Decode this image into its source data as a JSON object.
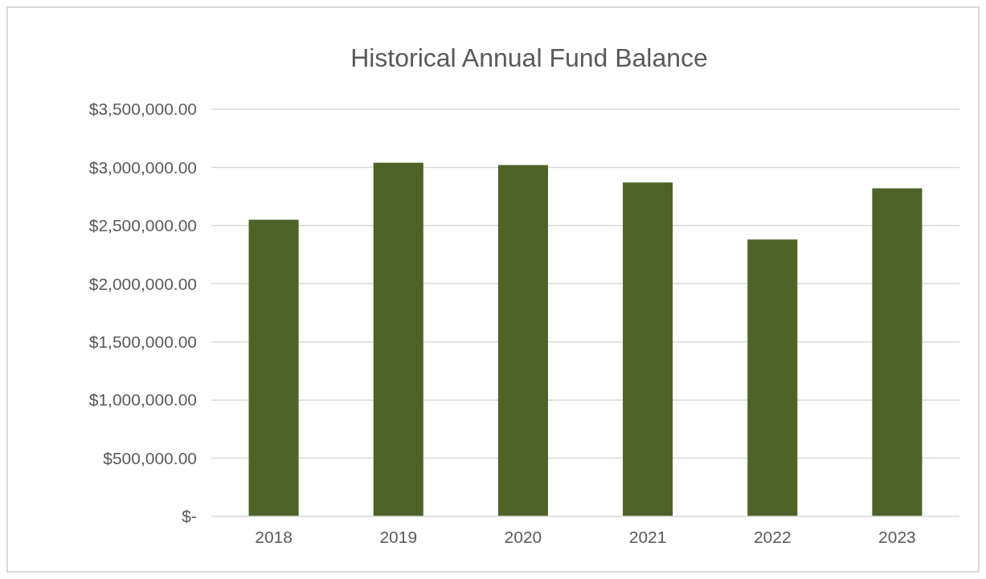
{
  "chart_data": {
    "type": "bar",
    "title": "Historical Annual Fund Balance",
    "categories": [
      "2018",
      "2019",
      "2020",
      "2021",
      "2022",
      "2023"
    ],
    "values": [
      2550000,
      3040000,
      3020000,
      2870000,
      2380000,
      2820000
    ],
    "color": "#4f6228",
    "ylim": [
      0,
      3500000
    ],
    "yticks": [
      {
        "value": 0,
        "label": "$-"
      },
      {
        "value": 500000,
        "label": "$500,000.00"
      },
      {
        "value": 1000000,
        "label": "$1,000,000.00"
      },
      {
        "value": 1500000,
        "label": "$1,500,000.00"
      },
      {
        "value": 2000000,
        "label": "$2,000,000.00"
      },
      {
        "value": 2500000,
        "label": "$2,500,000.00"
      },
      {
        "value": 3000000,
        "label": "$3,000,000.00"
      },
      {
        "value": 3500000,
        "label": "$3,500,000.00"
      }
    ],
    "grid": "y"
  }
}
